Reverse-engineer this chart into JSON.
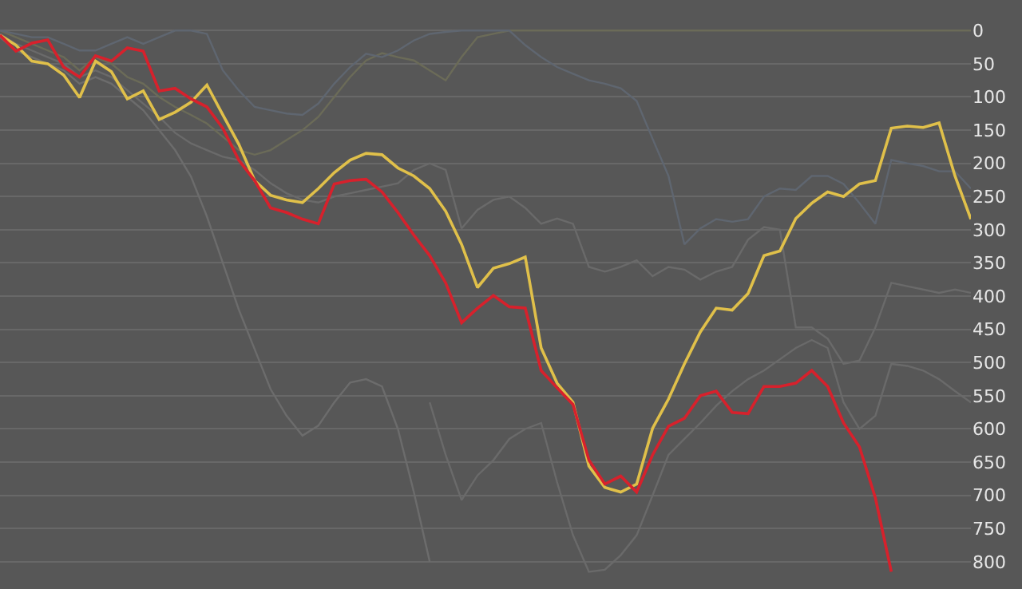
{
  "chart_data": {
    "type": "line",
    "categories": [
      null,
      null,
      null,
      null,
      null,
      null,
      null,
      null,
      null,
      null,
      null,
      null,
      null,
      null,
      null,
      null,
      null,
      null,
      null,
      null,
      null,
      null,
      null,
      null,
      null,
      null,
      null,
      null,
      null,
      null,
      null,
      null,
      null,
      null,
      null,
      null,
      null,
      null,
      null,
      null,
      null,
      null,
      null,
      null,
      null,
      null,
      null,
      null,
      null,
      null,
      null,
      null,
      null,
      null,
      null,
      null,
      null,
      null,
      null,
      null,
      null,
      null
    ],
    "ylim": [
      841,
      -46
    ],
    "yticks": [
      0,
      50,
      100,
      150,
      200,
      250,
      300,
      350,
      400,
      450,
      500,
      550,
      600,
      650,
      700,
      750,
      800
    ],
    "grid": "y",
    "tick_labels": "y",
    "marker": "none",
    "line_style": "solid",
    "series": [
      {
        "color": "#6b6b58",
        "values": [
          0,
          10,
          20,
          30,
          40,
          60,
          40,
          50,
          70,
          80,
          100,
          115,
          127,
          140,
          160,
          180,
          187,
          180,
          165,
          150,
          130,
          100,
          70,
          45,
          34,
          40,
          45,
          60,
          75,
          40,
          10,
          5,
          0,
          0,
          0,
          0,
          0,
          0,
          0,
          0,
          0,
          0,
          0,
          0,
          0,
          0,
          0,
          0,
          0,
          0,
          0,
          0,
          0,
          0,
          0,
          0,
          0,
          0,
          0,
          0,
          0,
          0
        ]
      },
      {
        "color": "#5f6670",
        "values": [
          0,
          5,
          10,
          10,
          20,
          30,
          30,
          20,
          10,
          20,
          10,
          0,
          0,
          5,
          60,
          90,
          115,
          120,
          125,
          127,
          110,
          80,
          55,
          35,
          40,
          30,
          15,
          5,
          2,
          0,
          0,
          0,
          0,
          22,
          40,
          55,
          65,
          75,
          80,
          87,
          106,
          163,
          219,
          322,
          298,
          284,
          288,
          284,
          250,
          238,
          240,
          219,
          219,
          231,
          260,
          291,
          195,
          200,
          204,
          212,
          212,
          238
        ]
      },
      {
        "color": "#6a6a6a",
        "values": [
          5,
          20,
          30,
          40,
          50,
          70,
          60,
          70,
          90,
          110,
          130,
          154,
          170,
          180,
          190,
          195,
          210,
          230,
          245,
          255,
          259,
          250,
          245,
          240,
          235,
          230,
          210,
          200,
          210,
          298,
          270,
          255,
          250,
          267,
          291,
          283,
          291,
          356,
          363,
          356,
          346,
          370,
          356,
          360,
          375,
          363,
          356,
          315,
          296,
          300,
          447,
          447,
          464,
          502,
          497,
          447,
          380,
          385,
          390,
          395,
          390,
          395
        ]
      },
      {
        "color": "#6c6c6c",
        "values": [
          10,
          30,
          40,
          50,
          60,
          80,
          70,
          80,
          100,
          120,
          150,
          180,
          220,
          280,
          350,
          420,
          480,
          540,
          580,
          610,
          595,
          560,
          530,
          525,
          536,
          600,
          695,
          800,
          null,
          null,
          null,
          null,
          null,
          null,
          null,
          null,
          null,
          null,
          null,
          null,
          null,
          null,
          null,
          null,
          null,
          null,
          null,
          null,
          null,
          null,
          null,
          null,
          null,
          null,
          null,
          null,
          null,
          null,
          null,
          null,
          null,
          null
        ]
      },
      {
        "color": "#6a6a6a",
        "values": [
          null,
          null,
          null,
          null,
          null,
          null,
          null,
          null,
          null,
          null,
          null,
          null,
          null,
          null,
          null,
          null,
          null,
          null,
          null,
          null,
          null,
          null,
          null,
          null,
          null,
          null,
          null,
          560,
          639,
          707,
          670,
          647,
          615,
          600,
          591,
          680,
          760,
          815,
          812,
          790,
          760,
          700,
          639,
          615,
          591,
          565,
          543,
          525,
          512,
          495,
          478,
          466,
          478,
          560,
          600,
          580,
          502,
          505,
          512,
          525,
          543,
          560
        ]
      },
      {
        "color": "#e0c04a",
        "values": [
          7,
          22,
          46,
          50,
          67,
          101,
          46,
          62,
          103,
          91,
          134,
          123,
          108,
          82,
          127,
          171,
          226,
          248,
          255,
          259,
          238,
          214,
          195,
          185,
          187,
          207,
          219,
          238,
          272,
          322,
          387,
          358,
          351,
          341,
          478,
          531,
          560,
          656,
          688,
          695,
          683,
          599,
          555,
          502,
          454,
          418,
          421,
          396,
          339,
          332,
          283,
          260,
          243,
          250,
          231,
          226,
          147,
          144,
          146,
          139,
          219,
          284
        ]
      },
      {
        "color": "#d7212c",
        "values": [
          7,
          31,
          19,
          14,
          55,
          70,
          38,
          46,
          26,
          31,
          91,
          87,
          103,
          115,
          147,
          195,
          226,
          267,
          274,
          284,
          291,
          231,
          226,
          224,
          243,
          274,
          308,
          339,
          380,
          440,
          418,
          399,
          416,
          418,
          512,
          538,
          563,
          647,
          683,
          671,
          695,
          639,
          596,
          584,
          550,
          543,
          575,
          577,
          536,
          536,
          531,
          512,
          536,
          591,
          627,
          704,
          815,
          null,
          null,
          null,
          null,
          null
        ]
      }
    ]
  }
}
